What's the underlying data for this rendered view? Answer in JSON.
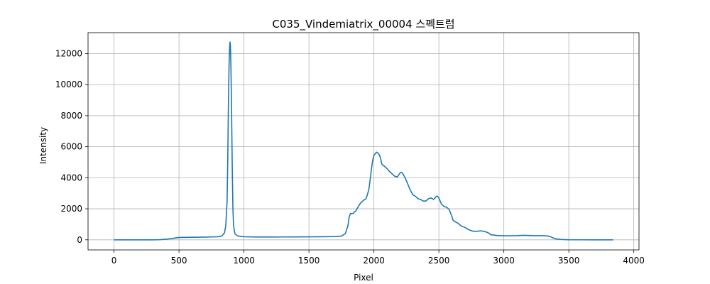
{
  "chart_data": {
    "type": "line",
    "title": "C035_Vindemiatrix_00004 스펙트럼",
    "xlabel": "Pixel",
    "ylabel": "Intensity",
    "xlim": [
      -200,
      4040
    ],
    "ylim": [
      -650,
      13350
    ],
    "grid": true,
    "x_ticks": [
      0,
      500,
      1000,
      1500,
      2000,
      2500,
      3000,
      3500,
      4000
    ],
    "y_ticks": [
      0,
      2000,
      4000,
      6000,
      8000,
      10000,
      12000
    ],
    "colors": {
      "series": "#1f77b4",
      "grid": "#b0b0b0"
    },
    "series": [
      {
        "points": [
          [
            0,
            0
          ],
          [
            100,
            0
          ],
          [
            200,
            0
          ],
          [
            300,
            0
          ],
          [
            350,
            10
          ],
          [
            400,
            40
          ],
          [
            450,
            90
          ],
          [
            480,
            130
          ],
          [
            500,
            150
          ],
          [
            550,
            160
          ],
          [
            600,
            165
          ],
          [
            650,
            170
          ],
          [
            700,
            175
          ],
          [
            750,
            185
          ],
          [
            800,
            200
          ],
          [
            830,
            250
          ],
          [
            850,
            450
          ],
          [
            860,
            900
          ],
          [
            870,
            2500
          ],
          [
            875,
            5000
          ],
          [
            880,
            8500
          ],
          [
            885,
            11200
          ],
          [
            890,
            12500
          ],
          [
            893,
            12750
          ],
          [
            896,
            12500
          ],
          [
            900,
            11000
          ],
          [
            905,
            8000
          ],
          [
            910,
            4500
          ],
          [
            915,
            2000
          ],
          [
            920,
            900
          ],
          [
            930,
            400
          ],
          [
            950,
            250
          ],
          [
            1000,
            200
          ],
          [
            1100,
            180
          ],
          [
            1200,
            180
          ],
          [
            1300,
            185
          ],
          [
            1400,
            190
          ],
          [
            1500,
            195
          ],
          [
            1600,
            200
          ],
          [
            1700,
            210
          ],
          [
            1750,
            240
          ],
          [
            1780,
            400
          ],
          [
            1800,
            900
          ],
          [
            1810,
            1500
          ],
          [
            1820,
            1700
          ],
          [
            1840,
            1700
          ],
          [
            1850,
            1800
          ],
          [
            1860,
            1850
          ],
          [
            1880,
            2150
          ],
          [
            1900,
            2400
          ],
          [
            1920,
            2550
          ],
          [
            1940,
            2650
          ],
          [
            1960,
            3200
          ],
          [
            1970,
            3800
          ],
          [
            1980,
            4500
          ],
          [
            1990,
            5100
          ],
          [
            2000,
            5450
          ],
          [
            2010,
            5550
          ],
          [
            2020,
            5650
          ],
          [
            2030,
            5600
          ],
          [
            2040,
            5500
          ],
          [
            2050,
            5300
          ],
          [
            2060,
            4900
          ],
          [
            2070,
            4800
          ],
          [
            2080,
            4750
          ],
          [
            2100,
            4600
          ],
          [
            2120,
            4400
          ],
          [
            2140,
            4250
          ],
          [
            2160,
            4100
          ],
          [
            2180,
            4050
          ],
          [
            2200,
            4300
          ],
          [
            2210,
            4350
          ],
          [
            2220,
            4300
          ],
          [
            2240,
            4000
          ],
          [
            2260,
            3600
          ],
          [
            2280,
            3200
          ],
          [
            2300,
            2900
          ],
          [
            2320,
            2800
          ],
          [
            2340,
            2650
          ],
          [
            2360,
            2600
          ],
          [
            2380,
            2500
          ],
          [
            2400,
            2500
          ],
          [
            2420,
            2650
          ],
          [
            2440,
            2700
          ],
          [
            2460,
            2600
          ],
          [
            2470,
            2700
          ],
          [
            2480,
            2800
          ],
          [
            2490,
            2800
          ],
          [
            2500,
            2700
          ],
          [
            2520,
            2300
          ],
          [
            2540,
            2150
          ],
          [
            2560,
            2100
          ],
          [
            2580,
            1950
          ],
          [
            2600,
            1500
          ],
          [
            2610,
            1250
          ],
          [
            2630,
            1150
          ],
          [
            2650,
            1050
          ],
          [
            2670,
            900
          ],
          [
            2700,
            800
          ],
          [
            2730,
            650
          ],
          [
            2760,
            560
          ],
          [
            2790,
            550
          ],
          [
            2820,
            580
          ],
          [
            2850,
            550
          ],
          [
            2880,
            450
          ],
          [
            2900,
            330
          ],
          [
            2950,
            280
          ],
          [
            3000,
            260
          ],
          [
            3050,
            260
          ],
          [
            3100,
            270
          ],
          [
            3150,
            290
          ],
          [
            3200,
            280
          ],
          [
            3250,
            270
          ],
          [
            3300,
            270
          ],
          [
            3340,
            250
          ],
          [
            3360,
            200
          ],
          [
            3380,
            120
          ],
          [
            3400,
            60
          ],
          [
            3450,
            20
          ],
          [
            3500,
            5
          ],
          [
            3600,
            2
          ],
          [
            3700,
            0
          ],
          [
            3800,
            0
          ],
          [
            3840,
            0
          ]
        ]
      }
    ]
  }
}
